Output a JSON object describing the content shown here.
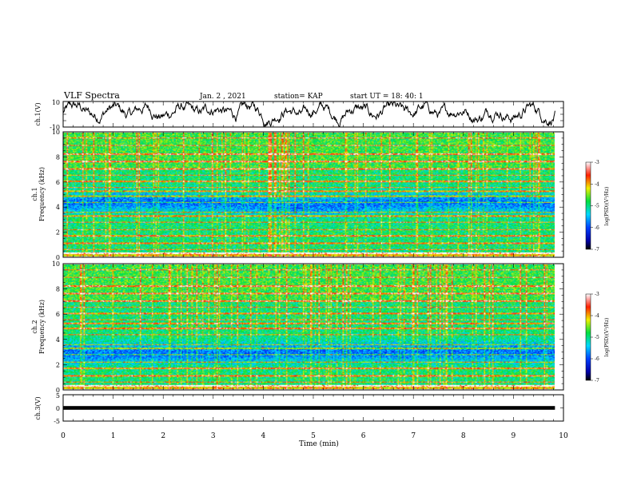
{
  "header": {
    "title": "VLF Spectra",
    "date": "Jan. 2 , 2021",
    "station": "station= KAP",
    "start": "start UT = 18: 40: 1"
  },
  "colorbar": {
    "label": "log(PSD)(V²/Hz)",
    "ticks": [
      "-3",
      "-4",
      "-5",
      "-6",
      "-7"
    ],
    "range": [
      -7,
      -3
    ]
  },
  "chart_data": [
    {
      "type": "line",
      "ylabel": "ch.1(V)",
      "ylim": [
        -10,
        10
      ],
      "yticks": [
        "10",
        "-10"
      ],
      "xlim": [
        0,
        10
      ],
      "series": [
        {
          "values_note": "",
          "x_range": [
            0,
            9.83
          ]
        }
      ]
    },
    {
      "type": "heatmap",
      "ylabel_channel": "ch.1",
      "ylabel": "Frequency (kHz)",
      "ylim": [
        0,
        10
      ],
      "yticks": [
        "0",
        "2",
        "4",
        "6",
        "8",
        "10"
      ],
      "xlim": [
        0,
        10
      ],
      "zlim": [
        -7,
        -3
      ],
      "data_x_range": [
        0,
        9.83
      ]
    },
    {
      "type": "heatmap",
      "ylabel_channel": "ch.2",
      "ylabel": "Frequency (kHz)",
      "ylim": [
        0,
        10
      ],
      "yticks": [
        "0",
        "2",
        "4",
        "6",
        "8",
        "10"
      ],
      "xlim": [
        0,
        10
      ],
      "zlim": [
        -7,
        -3
      ],
      "data_x_range": [
        0,
        9.83
      ]
    },
    {
      "type": "line",
      "ylabel": "ch.3(V)",
      "ylim": [
        -5,
        5
      ],
      "yticks": [
        "5",
        "0",
        "-5"
      ],
      "xlim": [
        0,
        10
      ],
      "xticks": [
        "0",
        "1",
        "2",
        "3",
        "4",
        "5",
        "6",
        "7",
        "8",
        "9",
        "10"
      ],
      "xlabel": "Time (min)",
      "series": [
        {
          "x_range": [
            0,
            9.83
          ],
          "y_band": [
            -0.7,
            0.7
          ]
        }
      ]
    }
  ]
}
